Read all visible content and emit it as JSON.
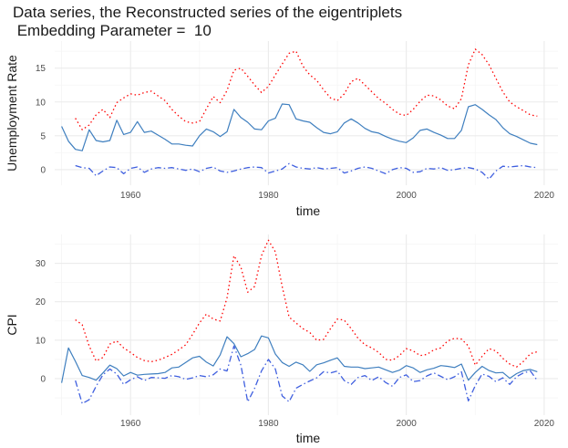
{
  "title_line1": "Data series, the Reconstructed series of the eigentriplets",
  "title_line2": " Embedding Parameter =  10",
  "colors": {
    "data": "#3F7FBF",
    "recon_red": "#FF0000",
    "recon_blue": "#3F5FDF",
    "grid_major": "#EBEBEB",
    "grid_minor": "#F5F5F5"
  },
  "chart_data": [
    {
      "type": "line",
      "title": "",
      "xlabel": "time",
      "ylabel": "Unemployment Rate",
      "xlim": [
        1949,
        2022
      ],
      "ylim": [
        -2.3,
        19
      ],
      "xticks": [
        1960,
        1980,
        2000,
        2020
      ],
      "yticks": [
        0,
        5,
        10,
        15
      ],
      "series": [
        {
          "style": "solid",
          "color": "#3F7FBF",
          "x": [
            1950,
            1951,
            1952,
            1953,
            1954,
            1955,
            1956,
            1957,
            1958,
            1959,
            1960,
            1961,
            1962,
            1963,
            1964,
            1965,
            1966,
            1967,
            1968,
            1969,
            1970,
            1971,
            1972,
            1973,
            1974,
            1975,
            1976,
            1977,
            1978,
            1979,
            1980,
            1981,
            1982,
            1983,
            1984,
            1985,
            1986,
            1987,
            1988,
            1989,
            1990,
            1991,
            1992,
            1993,
            1994,
            1995,
            1996,
            1997,
            1998,
            1999,
            2000,
            2001,
            2002,
            2003,
            2004,
            2005,
            2006,
            2007,
            2008,
            2009,
            2010,
            2011,
            2012,
            2013,
            2014,
            2015,
            2016,
            2017,
            2018,
            2019
          ],
          "y": [
            6.4,
            4.2,
            3.0,
            2.8,
            5.9,
            4.3,
            4.1,
            4.3,
            7.3,
            5.2,
            5.5,
            7.1,
            5.5,
            5.7,
            5.1,
            4.5,
            3.8,
            3.8,
            3.6,
            3.5,
            5.0,
            6.0,
            5.6,
            4.9,
            5.6,
            8.9,
            7.7,
            7.0,
            6.0,
            5.9,
            7.2,
            7.6,
            9.7,
            9.6,
            7.5,
            7.2,
            7.0,
            6.2,
            5.5,
            5.3,
            5.6,
            6.9,
            7.5,
            6.9,
            6.1,
            5.6,
            5.4,
            4.9,
            4.5,
            4.2,
            4.0,
            4.7,
            5.8,
            6.0,
            5.5,
            5.1,
            4.6,
            4.6,
            5.8,
            9.3,
            9.6,
            8.9,
            8.1,
            7.4,
            6.2,
            5.3,
            4.9,
            4.4,
            3.9,
            3.7
          ]
        },
        {
          "style": "dotted",
          "color": "#FF0000",
          "x": [
            1952,
            1953,
            1954,
            1955,
            1956,
            1957,
            1958,
            1959,
            1960,
            1961,
            1962,
            1963,
            1964,
            1965,
            1966,
            1967,
            1968,
            1969,
            1970,
            1971,
            1972,
            1973,
            1974,
            1975,
            1976,
            1977,
            1978,
            1979,
            1980,
            1981,
            1982,
            1983,
            1984,
            1985,
            1986,
            1987,
            1988,
            1989,
            1990,
            1991,
            1992,
            1993,
            1994,
            1995,
            1996,
            1997,
            1998,
            1999,
            2000,
            2001,
            2002,
            2003,
            2004,
            2005,
            2006,
            2007,
            2008,
            2009,
            2010,
            2011,
            2012,
            2013,
            2014,
            2015,
            2016,
            2017,
            2018,
            2019
          ],
          "y": [
            7.6,
            5.9,
            6.6,
            8.1,
            8.9,
            7.7,
            9.9,
            10.6,
            11.2,
            11.0,
            11.4,
            11.6,
            10.9,
            10.2,
            8.9,
            7.9,
            7.1,
            6.9,
            7.1,
            9.0,
            10.8,
            9.9,
            11.7,
            14.7,
            15.0,
            13.8,
            12.5,
            11.4,
            12.3,
            14.0,
            15.6,
            17.2,
            17.5,
            15.3,
            14.0,
            13.2,
            11.8,
            10.6,
            10.2,
            11.2,
            13.0,
            13.5,
            12.5,
            11.5,
            10.5,
            9.8,
            8.9,
            8.2,
            8.0,
            8.9,
            10.1,
            11.0,
            10.9,
            10.3,
            9.4,
            9.0,
            10.5,
            15.5,
            17.8,
            17.0,
            15.5,
            13.5,
            11.5,
            10.0,
            9.3,
            8.7,
            8.1,
            7.9
          ]
        },
        {
          "style": "dashdot",
          "color": "#3F5FDF",
          "x": [
            1952,
            1953,
            1954,
            1955,
            1956,
            1957,
            1958,
            1959,
            1960,
            1961,
            1962,
            1963,
            1964,
            1965,
            1966,
            1967,
            1968,
            1969,
            1970,
            1971,
            1972,
            1973,
            1974,
            1975,
            1976,
            1977,
            1978,
            1979,
            1980,
            1981,
            1982,
            1983,
            1984,
            1985,
            1986,
            1987,
            1988,
            1989,
            1990,
            1991,
            1992,
            1993,
            1994,
            1995,
            1996,
            1997,
            1998,
            1999,
            2000,
            2001,
            2002,
            2003,
            2004,
            2005,
            2006,
            2007,
            2008,
            2009,
            2010,
            2011,
            2012,
            2013,
            2014,
            2015,
            2016,
            2017,
            2018,
            2019
          ],
          "y": [
            0.6,
            0.3,
            0.2,
            -0.9,
            -0.2,
            0.4,
            0.3,
            -0.6,
            0.2,
            0.4,
            -0.4,
            0.1,
            0.3,
            0.2,
            0.3,
            0.1,
            -0.1,
            0.1,
            -0.3,
            0.2,
            0.4,
            -0.2,
            -0.4,
            -0.2,
            0.1,
            0.3,
            0.4,
            0.3,
            -0.5,
            -0.2,
            0.1,
            0.9,
            0.4,
            0.2,
            0.1,
            0.3,
            0.1,
            0.2,
            0.3,
            -0.5,
            -0.2,
            0.2,
            0.4,
            0.2,
            -0.2,
            -0.6,
            0.0,
            0.3,
            0.2,
            -0.4,
            -0.3,
            0.2,
            0.1,
            0.3,
            -0.1,
            0.0,
            0.2,
            0.3,
            0.1,
            -0.4,
            -1.4,
            -0.2,
            0.5,
            0.4,
            0.5,
            0.6,
            0.4,
            0.3
          ]
        }
      ]
    },
    {
      "type": "line",
      "title": "",
      "xlabel": "time",
      "ylabel": "CPI",
      "xlim": [
        1949,
        2022
      ],
      "ylim": [
        -9.5,
        37.5
      ],
      "xticks": [
        1960,
        1980,
        2000,
        2020
      ],
      "yticks": [
        0,
        10,
        20,
        30
      ],
      "series": [
        {
          "style": "solid",
          "color": "#3F7FBF",
          "x": [
            1950,
            1951,
            1952,
            1953,
            1954,
            1955,
            1956,
            1957,
            1958,
            1959,
            1960,
            1961,
            1962,
            1963,
            1964,
            1965,
            1966,
            1967,
            1968,
            1969,
            1970,
            1971,
            1972,
            1973,
            1974,
            1975,
            1976,
            1977,
            1978,
            1979,
            1980,
            1981,
            1982,
            1983,
            1984,
            1985,
            1986,
            1987,
            1988,
            1989,
            1990,
            1991,
            1992,
            1993,
            1994,
            1995,
            1996,
            1997,
            1998,
            1999,
            2000,
            2001,
            2002,
            2003,
            2004,
            2005,
            2006,
            2007,
            2008,
            2009,
            2010,
            2011,
            2012,
            2013,
            2014,
            2015,
            2016,
            2017,
            2018,
            2019
          ],
          "y": [
            -1.1,
            8.0,
            4.5,
            0.8,
            0.3,
            -0.4,
            1.5,
            3.5,
            2.6,
            0.7,
            1.6,
            0.9,
            1.1,
            1.2,
            1.3,
            1.6,
            2.8,
            3.0,
            4.2,
            5.4,
            5.8,
            4.3,
            3.3,
            6.2,
            10.9,
            9.1,
            5.7,
            6.5,
            7.6,
            11.1,
            10.6,
            6.4,
            4.2,
            3.2,
            4.3,
            3.6,
            1.9,
            3.6,
            4.1,
            4.8,
            5.4,
            3.2,
            3.0,
            3.0,
            2.6,
            2.8,
            3.0,
            2.3,
            1.6,
            2.2,
            3.4,
            2.8,
            1.6,
            2.3,
            2.7,
            3.4,
            3.2,
            2.9,
            3.8,
            -0.4,
            1.6,
            3.2,
            2.1,
            1.5,
            1.6,
            0.1,
            1.3,
            2.1,
            2.4,
            1.8
          ]
        },
        {
          "style": "dotted",
          "color": "#FF0000",
          "x": [
            1952,
            1953,
            1954,
            1955,
            1956,
            1957,
            1958,
            1959,
            1960,
            1961,
            1962,
            1963,
            1964,
            1965,
            1966,
            1967,
            1968,
            1969,
            1970,
            1971,
            1972,
            1973,
            1974,
            1975,
            1976,
            1977,
            1978,
            1979,
            1980,
            1981,
            1982,
            1983,
            1984,
            1985,
            1986,
            1987,
            1988,
            1989,
            1990,
            1991,
            1992,
            1993,
            1994,
            1995,
            1996,
            1997,
            1998,
            1999,
            2000,
            2001,
            2002,
            2003,
            2004,
            2005,
            2006,
            2007,
            2008,
            2009,
            2010,
            2011,
            2012,
            2013,
            2014,
            2015,
            2016,
            2017,
            2018,
            2019
          ],
          "y": [
            15.3,
            14.0,
            8.5,
            4.6,
            5.5,
            9.0,
            9.8,
            8.0,
            6.8,
            5.5,
            4.7,
            4.4,
            4.8,
            5.5,
            6.3,
            7.5,
            8.8,
            11.5,
            14.5,
            16.8,
            15.5,
            15.0,
            21.0,
            32.0,
            29.0,
            22.5,
            24.0,
            32.0,
            36.0,
            33.0,
            24.0,
            16.0,
            14.5,
            13.0,
            12.0,
            10.0,
            10.2,
            13.0,
            15.5,
            15.2,
            13.0,
            10.5,
            8.8,
            8.0,
            6.8,
            5.0,
            4.8,
            6.0,
            7.8,
            7.2,
            6.0,
            6.3,
            7.5,
            8.0,
            9.8,
            10.5,
            10.3,
            8.5,
            3.5,
            5.8,
            7.8,
            7.2,
            5.3,
            3.8,
            3.0,
            4.5,
            6.5,
            7.0
          ]
        },
        {
          "style": "dashdot",
          "color": "#3F5FDF",
          "x": [
            1952,
            1953,
            1954,
            1955,
            1956,
            1957,
            1958,
            1959,
            1960,
            1961,
            1962,
            1963,
            1964,
            1965,
            1966,
            1967,
            1968,
            1969,
            1970,
            1971,
            1972,
            1973,
            1974,
            1975,
            1976,
            1977,
            1978,
            1979,
            1980,
            1981,
            1982,
            1983,
            1984,
            1985,
            1986,
            1987,
            1988,
            1989,
            1990,
            1991,
            1992,
            1993,
            1994,
            1995,
            1996,
            1997,
            1998,
            1999,
            2000,
            2001,
            2002,
            2003,
            2004,
            2005,
            2006,
            2007,
            2008,
            2009,
            2010,
            2011,
            2012,
            2013,
            2014,
            2015,
            2016,
            2017,
            2018,
            2019
          ],
          "y": [
            -0.5,
            -6.5,
            -5.5,
            -2.0,
            1.0,
            2.5,
            1.2,
            -1.5,
            -0.3,
            0.5,
            -0.5,
            0.3,
            0.2,
            0.1,
            0.8,
            0.5,
            -0.2,
            0.2,
            0.8,
            0.5,
            1.0,
            2.5,
            2.0,
            8.5,
            3.5,
            -6.0,
            -2.5,
            2.0,
            5.0,
            2.5,
            -4.5,
            -6.0,
            -2.5,
            -1.5,
            -0.6,
            0.2,
            1.8,
            1.5,
            2.0,
            -0.5,
            -1.5,
            0.3,
            0.8,
            -0.5,
            0.5,
            -1.0,
            -2.0,
            0.3,
            1.0,
            -0.8,
            -0.5,
            0.7,
            1.5,
            0.6,
            -0.3,
            0.5,
            1.8,
            -5.8,
            -1.8,
            1.2,
            0.6,
            -0.8,
            0.2,
            -1.5,
            0.5,
            1.5,
            2.0,
            -0.5
          ]
        }
      ]
    }
  ]
}
